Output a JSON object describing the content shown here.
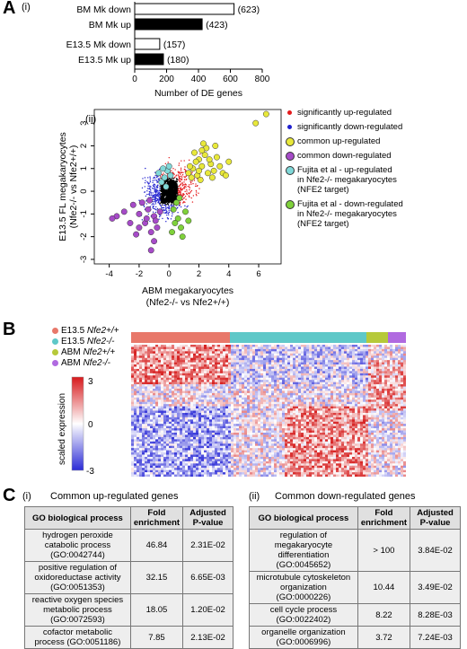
{
  "panels": {
    "A": "A",
    "B": "B",
    "C": "C"
  },
  "panelA": {
    "sublabel": "(i)",
    "xlabel": "Number of DE genes",
    "colors": {
      "down": "#ffffff",
      "up": "#000000"
    }
  },
  "panelAii": {
    "sublabel": "(ii)",
    "ylabel_line1": "E13.5 FL megakaryocytes",
    "ylabel_line2": "(Nfe2-/- vs Nfe2+/+)",
    "xlabel_line1": "ABM megakaryocytes",
    "xlabel_line2": "(Nfe2-/- vs Nfe2+/+)",
    "legend": [
      {
        "color": "#e41a1c",
        "lines": [
          "significantly up-regulated"
        ],
        "small": true
      },
      {
        "color": "#1f1fcf",
        "lines": [
          "significantly down-regulated"
        ],
        "small": true
      },
      {
        "color": "#e8e83a",
        "lines": [
          "common up-regulated"
        ]
      },
      {
        "color": "#a64bc8",
        "lines": [
          "common down-regulated"
        ]
      },
      {
        "color": "#80d8d8",
        "lines": [
          "Fujita et al - up-regulated",
          "in Nfe2-/- megakaryocytes",
          "(NFE2 target)"
        ]
      },
      {
        "color": "#7fd13b",
        "lines": [
          "Fujita et al - down-regulated",
          "in Nfe2-/- megakaryocytes",
          "(NFE2 target)"
        ]
      }
    ]
  },
  "chart_data": [
    {
      "type": "bar",
      "orientation": "horizontal",
      "categories": [
        "BM Mk down",
        "BM Mk up",
        "E13.5 Mk down",
        "E13.5 Mk up"
      ],
      "values": [
        623,
        423,
        157,
        180
      ],
      "value_labels": [
        "(623)",
        "(423)",
        "(157)",
        "(180)"
      ],
      "xlabel": "Number of DE genes",
      "xlim": [
        0,
        800
      ],
      "xticks": [
        "0",
        "200",
        "400",
        "600",
        "800"
      ]
    },
    {
      "type": "scatter",
      "xlabel": "ABM megakaryocytes (Nfe2-/- vs Nfe2+/+)",
      "ylabel": "E13.5 FL megakaryocytes (Nfe2-/- vs Nfe2+/+)",
      "xlim": [
        -5,
        7.5
      ],
      "ylim": [
        -3.2,
        3.6
      ],
      "xticks": [
        "-4",
        "-2",
        "0",
        "2",
        "4",
        "6"
      ],
      "yticks": [
        "-3",
        "-2",
        "-1",
        "0",
        "1",
        "2",
        "3"
      ],
      "series": [
        {
          "name": "common up-regulated",
          "points": [
            [
              1.6,
              1.0
            ],
            [
              2.0,
              1.4
            ],
            [
              2.4,
              1.6
            ],
            [
              2.8,
              1.2
            ],
            [
              3.0,
              0.9
            ],
            [
              1.9,
              0.7
            ],
            [
              2.2,
              1.1
            ],
            [
              3.2,
              1.5
            ],
            [
              2.6,
              0.8
            ],
            [
              1.8,
              1.3
            ],
            [
              2.5,
              1.9
            ],
            [
              3.4,
              1.1
            ],
            [
              1.5,
              0.6
            ],
            [
              2.1,
              0.5
            ],
            [
              2.9,
              0.6
            ],
            [
              3.6,
              0.8
            ],
            [
              1.7,
              1.7
            ],
            [
              2.3,
              2.1
            ],
            [
              4.0,
              1.3
            ],
            [
              3.1,
              2.0
            ],
            [
              5.8,
              3.0
            ],
            [
              6.5,
              3.4
            ],
            [
              2.0,
              0.9
            ],
            [
              2.7,
              1.4
            ],
            [
              1.4,
              1.1
            ],
            [
              3.8,
              0.7
            ],
            [
              2.2,
              1.8
            ],
            [
              1.3,
              0.8
            ]
          ]
        },
        {
          "name": "common down-regulated",
          "points": [
            [
              -2.0,
              -1.0
            ],
            [
              -1.6,
              -1.4
            ],
            [
              -1.2,
              -1.8
            ],
            [
              -2.4,
              -0.6
            ],
            [
              -1.0,
              -1.1
            ],
            [
              -1.4,
              -0.8
            ],
            [
              -3.0,
              -0.9
            ],
            [
              -3.5,
              -1.1
            ],
            [
              -0.8,
              -1.6
            ],
            [
              -1.8,
              -0.5
            ],
            [
              -2.6,
              -1.4
            ],
            [
              -1.2,
              -2.6
            ],
            [
              -1.0,
              -2.2
            ],
            [
              -0.6,
              -0.9
            ],
            [
              -2.2,
              -1.9
            ],
            [
              -0.9,
              -1.3
            ],
            [
              -1.5,
              -1.2
            ],
            [
              -3.8,
              -1.2
            ],
            [
              -1.3,
              -0.4
            ],
            [
              -2.0,
              -1.6
            ]
          ]
        },
        {
          "name": "Fujita et al - up-regulated in Nfe2-/- megakaryocytes (NFE2 target)",
          "points": [
            [
              -0.3,
              0.6
            ],
            [
              -0.1,
              0.9
            ],
            [
              -0.5,
              0.4
            ],
            [
              0.1,
              0.7
            ],
            [
              -0.2,
              0.2
            ],
            [
              -0.7,
              0.8
            ],
            [
              0.0,
              1.1
            ],
            [
              -0.4,
              1.0
            ]
          ]
        },
        {
          "name": "Fujita et al - down-regulated in Nfe2-/- megakaryocytes (NFE2 target)",
          "points": [
            [
              0.3,
              -0.8
            ],
            [
              0.6,
              -1.2
            ],
            [
              0.8,
              -1.6
            ],
            [
              0.2,
              -1.8
            ],
            [
              0.5,
              -0.5
            ],
            [
              1.1,
              -0.9
            ],
            [
              0.9,
              -2.0
            ],
            [
              0.4,
              -1.4
            ],
            [
              1.3,
              -1.3
            ],
            [
              0.7,
              -0.3
            ]
          ]
        }
      ]
    }
  ],
  "panelB": {
    "legend": [
      {
        "color": "#e8786a",
        "text": "E13.5 ",
        "italic": "Nfe2+/+"
      },
      {
        "color": "#5ec8c8",
        "text": "E13.5 ",
        "italic": "Nfe2-/-"
      },
      {
        "color": "#b6c93a",
        "text": "ABM ",
        "italic": "Nfe2+/+"
      },
      {
        "color": "#b06ae0",
        "text": "ABM ",
        "italic": "Nfe2-/-"
      }
    ],
    "scale_label": "scaled expression",
    "scale_ticks": [
      "3",
      "0",
      "-3"
    ]
  },
  "panelC": {
    "i": {
      "sublabel": "(i)",
      "title": "Common up-regulated genes",
      "headers": [
        "GO biological process",
        "Fold enrichment",
        "Adjusted P-value"
      ],
      "rows": [
        [
          "hydrogen peroxide catabolic process (GO:0042744)",
          "46.84",
          "2.31E-02"
        ],
        [
          "positive regulation of oxidoreductase activity (GO:0051353)",
          "32.15",
          "6.65E-03"
        ],
        [
          "reactive oxygen species metabolic process (GO:0072593)",
          "18.05",
          "1.20E-02"
        ],
        [
          "cofactor metabolic process (GO:0051186)",
          "7.85",
          "2.13E-02"
        ]
      ]
    },
    "ii": {
      "sublabel": "(ii)",
      "title": "Common down-regulated genes",
      "headers": [
        "GO biological process",
        "Fold enrichment",
        "Adjusted P-value"
      ],
      "rows": [
        [
          "regulation of megakaryocyte differentiation (GO:0045652)",
          "> 100",
          "3.84E-02"
        ],
        [
          "microtubule cytoskeleton organization (GO:0000226)",
          "10.44",
          "3.49E-02"
        ],
        [
          "cell cycle process (GO:0022402)",
          "8.22",
          "8.28E-03"
        ],
        [
          "organelle organization (GO:0006996)",
          "3.72",
          "7.24E-03"
        ]
      ]
    }
  }
}
